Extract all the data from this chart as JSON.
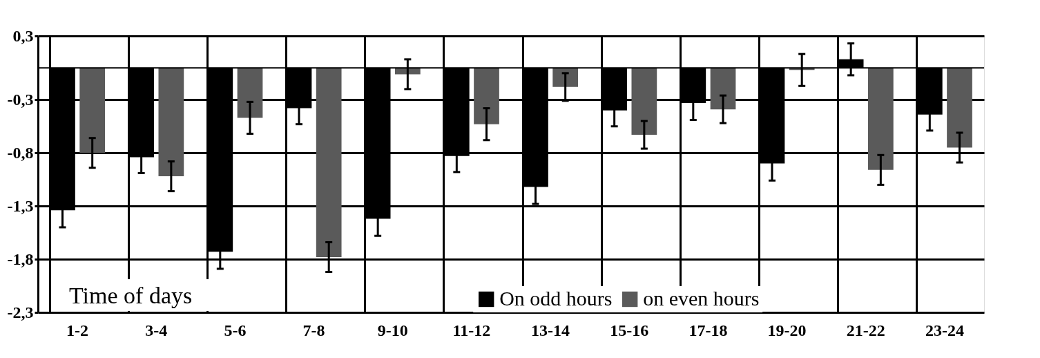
{
  "chart_data": {
    "type": "bar",
    "xlabel": "Time of days",
    "categories": [
      "1-2",
      "3-4",
      "5-6",
      "7-8",
      "9-10",
      "11-12",
      "13-14",
      "15-16",
      "17-18",
      "19-20",
      "21-22",
      "23-24"
    ],
    "series": [
      {
        "name": "On odd hours",
        "color": "#000000",
        "values": [
          -1.34,
          -0.84,
          -1.73,
          -0.38,
          -1.42,
          -0.83,
          -1.12,
          -0.4,
          -0.33,
          -0.9,
          0.08,
          -0.44
        ],
        "errors": [
          0.16,
          0.15,
          0.16,
          0.15,
          0.16,
          0.15,
          0.16,
          0.15,
          0.16,
          0.16,
          0.15,
          0.15
        ]
      },
      {
        "name": "on even hours",
        "color": "#5a5a5a",
        "values": [
          -0.8,
          -1.02,
          -0.47,
          -1.78,
          -0.06,
          -0.53,
          -0.18,
          -0.63,
          -0.39,
          -0.02,
          -0.96,
          -0.75
        ],
        "errors": [
          0.14,
          0.14,
          0.15,
          0.14,
          0.14,
          0.15,
          0.13,
          0.13,
          0.13,
          0.15,
          0.14,
          0.14
        ]
      }
    ],
    "ylim": [
      -2.3,
      0.3
    ],
    "yticks": [
      {
        "value": 0.3,
        "label": "0,3"
      },
      {
        "value": -0.3,
        "label": "-0,3"
      },
      {
        "value": -0.8,
        "label": "-0,8"
      },
      {
        "value": -1.3,
        "label": "-1,3"
      },
      {
        "value": -1.8,
        "label": "-1,8"
      },
      {
        "value": -2.3,
        "label": "-2,3"
      }
    ],
    "grid": true,
    "legend": "bottom"
  }
}
